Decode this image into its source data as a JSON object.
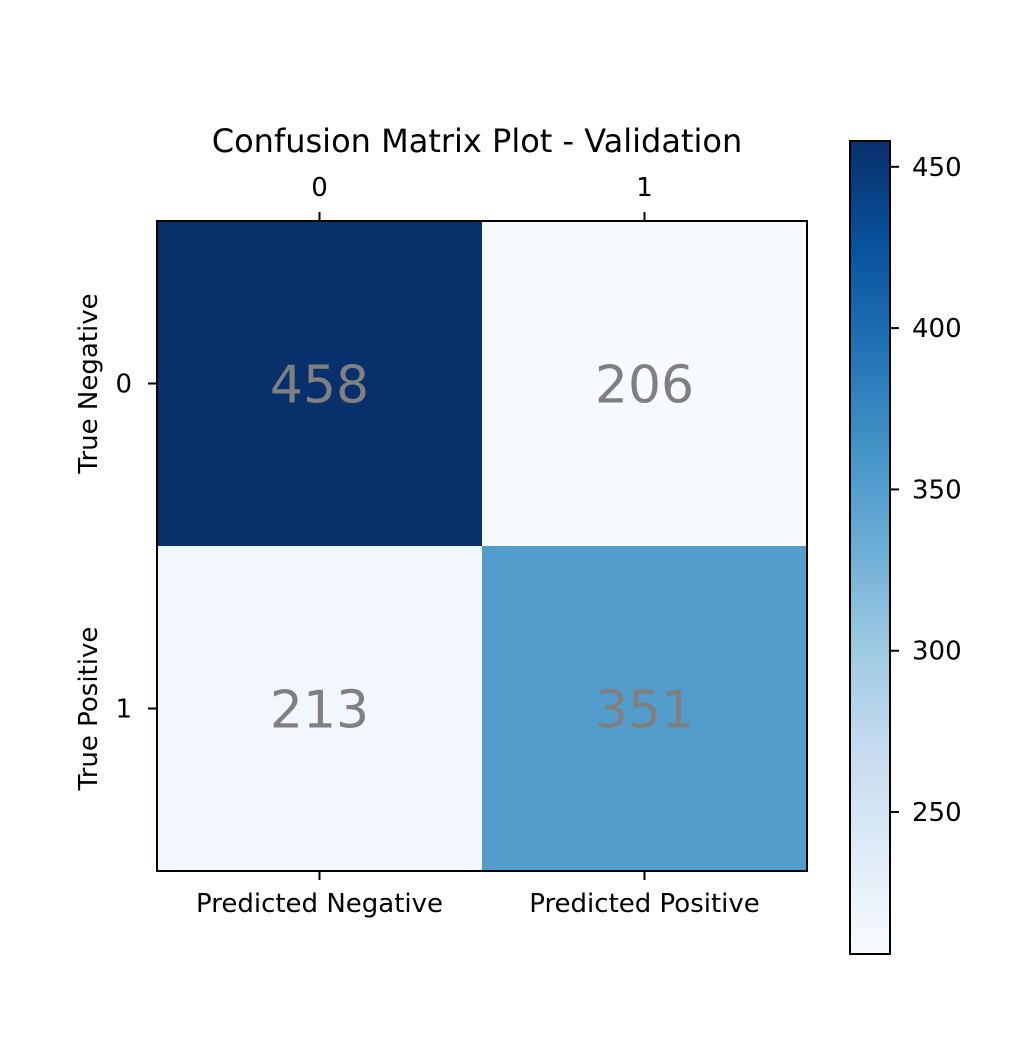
{
  "chart_data": {
    "type": "heatmap",
    "title": "Confusion Matrix Plot - Validation",
    "x_top_tick_labels": [
      "0",
      "1"
    ],
    "x_bottom_tick_labels": [
      "Predicted Negative",
      "Predicted Positive"
    ],
    "y_tick_labels": [
      "0",
      "1"
    ],
    "y_row_labels": [
      "True Negative",
      "True Positive"
    ],
    "matrix": [
      [
        458,
        206
      ],
      [
        213,
        351
      ]
    ],
    "colormap": "Blues",
    "value_label_color": "#808080",
    "colorbar": {
      "range": [
        206,
        458
      ],
      "ticks": [
        250,
        300,
        350,
        400,
        450
      ],
      "tick_labels": [
        "250",
        "300",
        "350",
        "400",
        "450"
      ]
    },
    "grid": false
  }
}
